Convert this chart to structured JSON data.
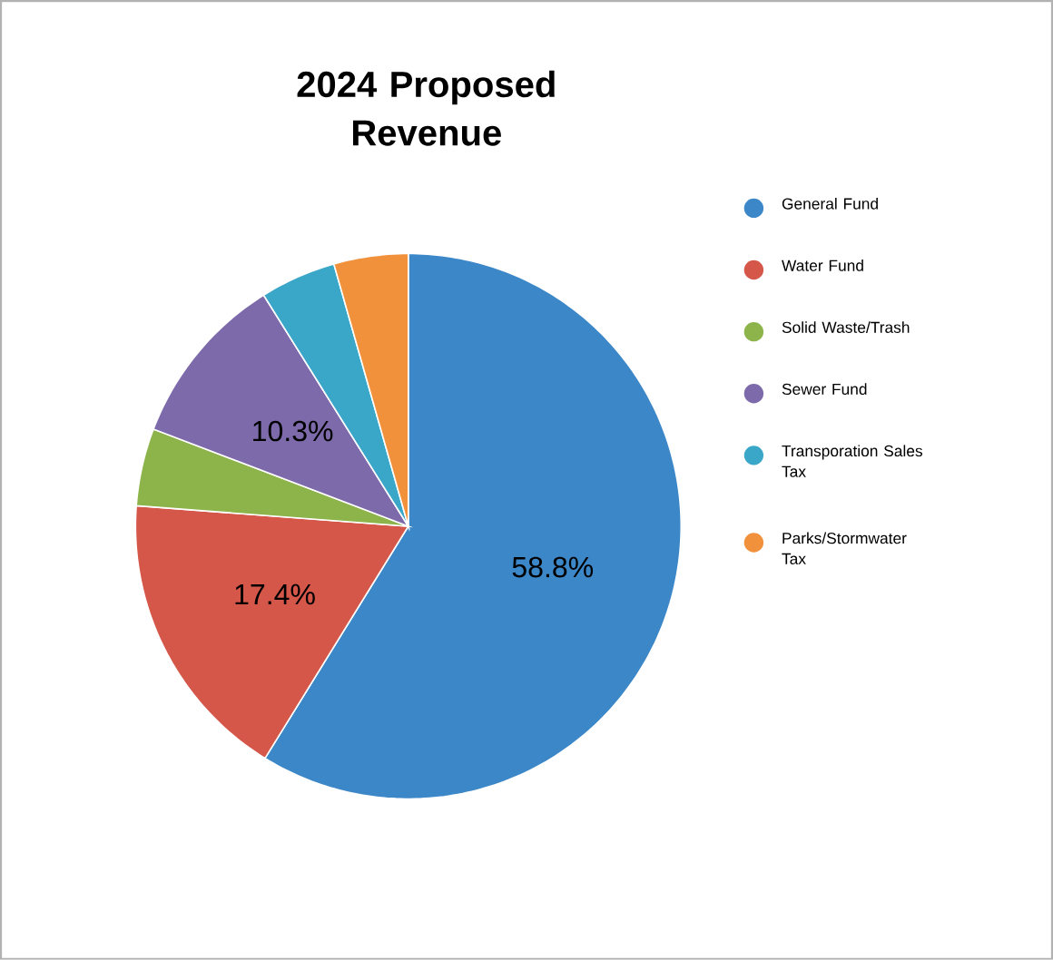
{
  "chart_data": {
    "type": "pie",
    "title": "2024 Proposed Revenue",
    "categories": [
      "General Fund",
      "Water Fund",
      "Solid Waste/Trash",
      "Sewer Fund",
      "Transporation Sales Tax",
      "Parks/Stormwater Tax"
    ],
    "values": [
      58.8,
      17.4,
      4.6,
      10.3,
      4.5,
      4.4
    ],
    "value_labels": [
      "58.8%",
      "17.4%",
      null,
      "10.3%",
      null,
      null
    ],
    "colors": [
      "#3c87c8",
      "#d4574a",
      "#8db44a",
      "#7d6aaa",
      "#3aa6c8",
      "#f2913c"
    ],
    "legend": "right"
  }
}
